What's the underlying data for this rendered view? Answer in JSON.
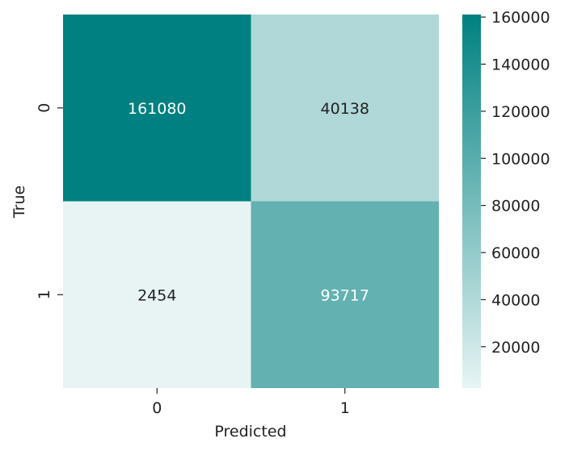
{
  "chart_data": {
    "type": "heatmap",
    "x_categories": [
      "0",
      "1"
    ],
    "y_categories": [
      "0",
      "1"
    ],
    "values": [
      [
        161080,
        40138
      ],
      [
        2454,
        93717
      ]
    ],
    "xlabel": "Predicted",
    "ylabel": "True",
    "colorbar": {
      "min": 2454,
      "max": 161080,
      "ticks": [
        20000,
        40000,
        60000,
        80000,
        100000,
        120000,
        140000,
        160000
      ],
      "color_low": "#e8f4f4",
      "color_high": "#008080"
    },
    "annotation_color_dark": "#222222",
    "annotation_color_light": "#ffffff",
    "grid": false
  }
}
